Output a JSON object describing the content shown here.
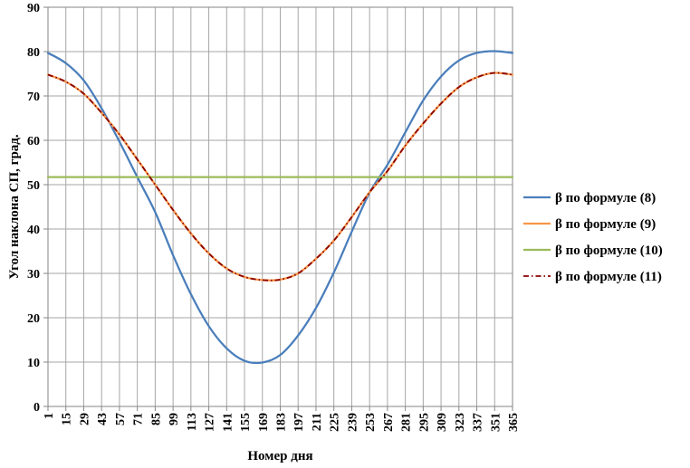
{
  "chart_data": {
    "type": "line",
    "xlabel": "Номер дня",
    "ylabel": "Угол наклона СП, град.",
    "ylim": [
      0,
      90
    ],
    "yticks": [
      "0",
      "10",
      "20",
      "30",
      "40",
      "50",
      "60",
      "70",
      "80",
      "90"
    ],
    "xlim": [
      1,
      365
    ],
    "xticks": [
      "1",
      "15",
      "29",
      "43",
      "57",
      "71",
      "85",
      "99",
      "113",
      "127",
      "141",
      "155",
      "169",
      "183",
      "197",
      "211",
      "225",
      "239",
      "253",
      "267",
      "281",
      "295",
      "309",
      "323",
      "337",
      "351",
      "365"
    ],
    "grid": "vertical gridlines at every x tick and horizontal gridlines at every y tick",
    "legend_position": "right",
    "x": [
      1,
      15,
      29,
      43,
      57,
      71,
      85,
      99,
      113,
      127,
      141,
      155,
      169,
      183,
      197,
      211,
      225,
      239,
      253,
      267,
      281,
      295,
      309,
      323,
      337,
      351,
      365
    ],
    "series": [
      {
        "name": "β по формуле (8)",
        "color": "#4A7EBB",
        "style": "solid",
        "values": [
          79.7,
          77.4,
          73.5,
          67.2,
          59.7,
          51.7,
          43.8,
          34.1,
          25.3,
          18.1,
          13.1,
          10.3,
          9.9,
          11.6,
          16.0,
          22.2,
          30.2,
          39.4,
          48.2,
          54.5,
          61.8,
          69.0,
          74.4,
          78.0,
          79.7,
          80.1,
          79.7
        ]
      },
      {
        "name": "β по формуле (9)",
        "color": "#F79646",
        "style": "solid",
        "values": [
          74.8,
          73.2,
          70.5,
          66.2,
          61.3,
          55.7,
          50.0,
          44.3,
          39.0,
          34.5,
          31.1,
          29.2,
          28.5,
          28.6,
          30.0,
          33.3,
          37.4,
          42.7,
          48.3,
          53.1,
          58.8,
          63.8,
          68.3,
          72.0,
          74.2,
          75.2,
          74.8
        ]
      },
      {
        "name": "β по формуле (10)",
        "color": "#9BBB59",
        "style": "solid",
        "values": [
          51.7,
          51.7,
          51.7,
          51.7,
          51.7,
          51.7,
          51.7,
          51.7,
          51.7,
          51.7,
          51.7,
          51.7,
          51.7,
          51.7,
          51.7,
          51.7,
          51.7,
          51.7,
          51.7,
          51.7,
          51.7,
          51.7,
          51.7,
          51.7,
          51.7,
          51.7,
          51.7
        ]
      },
      {
        "name": "β по формуле (11)",
        "color": "#8B0000",
        "style": "dash-dot",
        "values": [
          74.8,
          73.2,
          70.5,
          66.2,
          61.3,
          55.7,
          50.0,
          44.3,
          39.0,
          34.5,
          31.1,
          29.2,
          28.5,
          28.6,
          30.0,
          33.3,
          37.4,
          42.7,
          48.3,
          53.1,
          58.8,
          63.8,
          68.3,
          72.0,
          74.2,
          75.2,
          74.8
        ]
      }
    ]
  }
}
